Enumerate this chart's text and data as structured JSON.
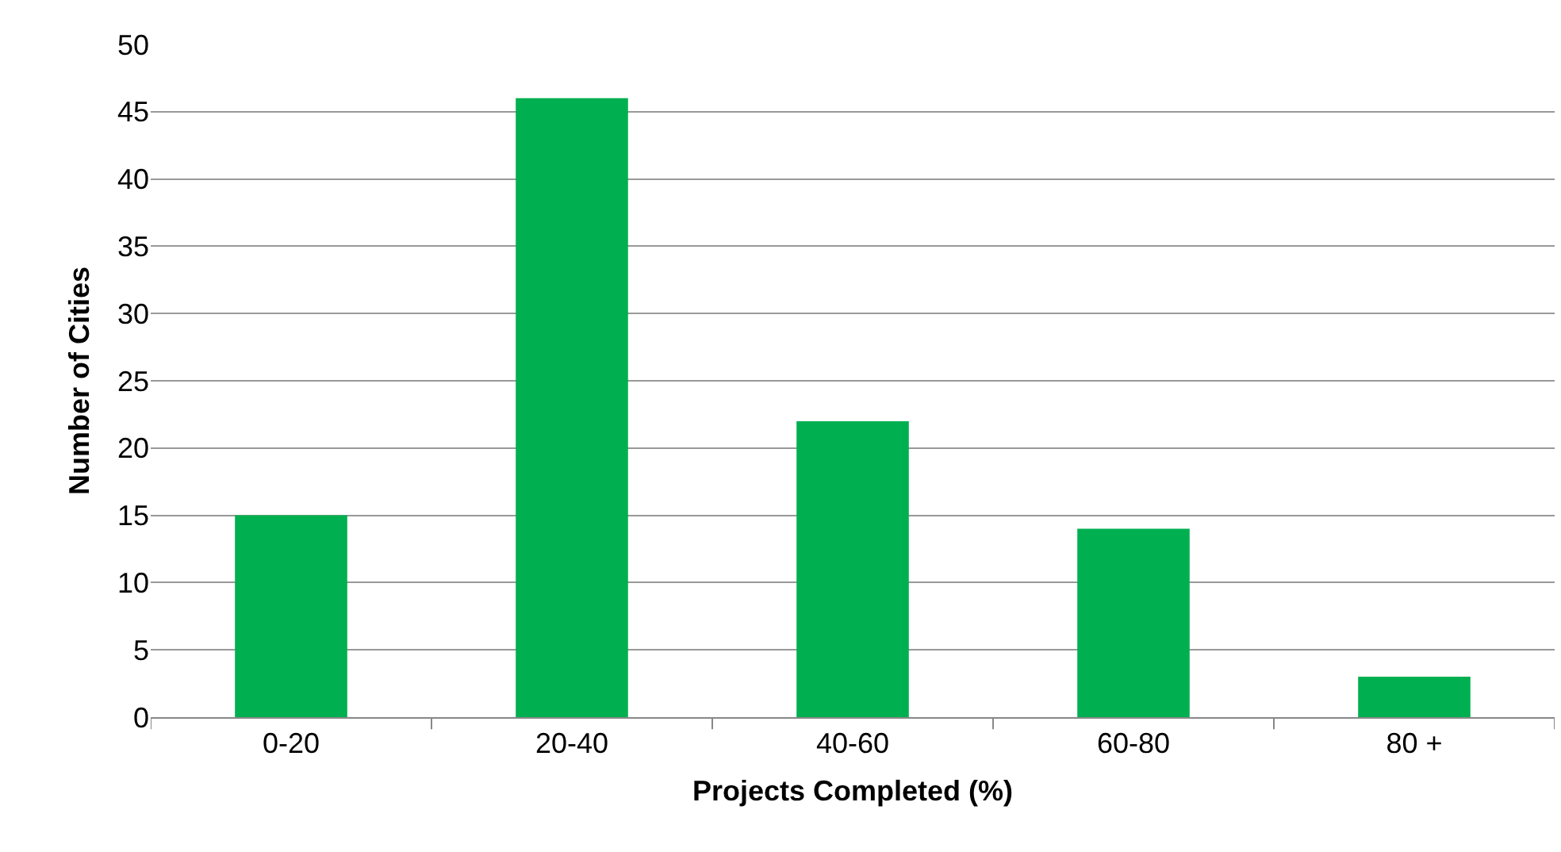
{
  "chart_data": {
    "type": "bar",
    "xlabel": "Projects Completed (%)",
    "ylabel": "Number of Cities",
    "categories": [
      "0-20",
      "20-40",
      "40-60",
      "60-80",
      "80 +"
    ],
    "values": [
      15,
      46,
      22,
      14,
      3
    ],
    "color": "#00b050",
    "ylim": [
      0,
      50
    ],
    "yticks": [
      0,
      5,
      10,
      15,
      20,
      25,
      30,
      35,
      40,
      45,
      50
    ],
    "grid": "y",
    "legend": false
  }
}
